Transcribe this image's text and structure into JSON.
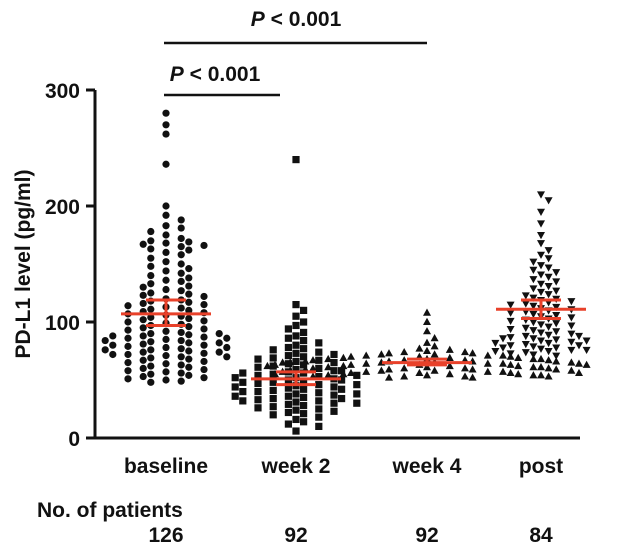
{
  "colors": {
    "points": "#111111",
    "median": "#e8412a",
    "axis": "#111111"
  },
  "chart_data": {
    "type": "scatter",
    "subtype": "dot-plot",
    "xlabel": "",
    "ylabel": "PD-L1 level (pg/ml)",
    "ylim": [
      0,
      300
    ],
    "yticks": [
      0,
      100,
      200,
      300
    ],
    "grid": false,
    "categories": [
      "baseline",
      "week 2",
      "week 4",
      "post"
    ],
    "markers": [
      "circle",
      "square",
      "triangle-up",
      "triangle-down"
    ],
    "summary_lines": [
      {
        "group": "baseline",
        "center": 107,
        "low": 97,
        "high": 119
      },
      {
        "group": "week 2",
        "center": 51,
        "low": 46,
        "high": 57
      },
      {
        "group": "week 4",
        "center": 65,
        "low": 63,
        "high": 68
      },
      {
        "group": "post",
        "center": 111,
        "low": 103,
        "high": 119
      }
    ],
    "series": [
      {
        "group": "baseline",
        "values": [
          280,
          270,
          262,
          236,
          200,
          192,
          188,
          183,
          181,
          178,
          175,
          172,
          170,
          169,
          168,
          167,
          166,
          165,
          163,
          162,
          160,
          158,
          155,
          152,
          150,
          148,
          146,
          144,
          142,
          140,
          138,
          136,
          135,
          133,
          131,
          130,
          128,
          127,
          125,
          124,
          123,
          122,
          120,
          119,
          118,
          117,
          116,
          115,
          114,
          113,
          112,
          111,
          110,
          109,
          108,
          107,
          106,
          105,
          104,
          103,
          102,
          101,
          100,
          99,
          98,
          97,
          96,
          95,
          94,
          93,
          92,
          91,
          90,
          90,
          89,
          88,
          88,
          87,
          86,
          86,
          85,
          84,
          84,
          83,
          82,
          82,
          81,
          80,
          80,
          79,
          78,
          78,
          77,
          76,
          76,
          75,
          74,
          74,
          73,
          72,
          72,
          71,
          70,
          70,
          69,
          68,
          67,
          66,
          65,
          64,
          63,
          62,
          61,
          60,
          59,
          58,
          57,
          56,
          55,
          54,
          53,
          52,
          51,
          50,
          49,
          48
        ]
      },
      {
        "group": "week 2",
        "values": [
          240,
          115,
          110,
          105,
          100,
          97,
          94,
          91,
          88,
          86,
          84,
          82,
          80,
          78,
          77,
          76,
          74,
          73,
          72,
          71,
          70,
          69,
          68,
          67,
          66,
          65,
          64,
          63,
          62,
          61,
          60,
          59,
          58,
          58,
          57,
          56,
          56,
          55,
          54,
          54,
          53,
          52,
          52,
          51,
          50,
          50,
          49,
          48,
          48,
          47,
          46,
          46,
          45,
          44,
          44,
          43,
          42,
          42,
          41,
          40,
          40,
          39,
          38,
          38,
          37,
          36,
          36,
          35,
          34,
          34,
          33,
          32,
          32,
          31,
          30,
          30,
          29,
          28,
          27,
          26,
          25,
          24,
          23,
          22,
          21,
          20,
          18,
          16,
          14,
          12,
          10,
          6
        ]
      },
      {
        "group": "week 4",
        "values": [
          108,
          100,
          92,
          86,
          82,
          79,
          77,
          76,
          75,
          74,
          74,
          73,
          73,
          72,
          72,
          71,
          71,
          71,
          70,
          70,
          70,
          69,
          69,
          69,
          68,
          68,
          68,
          68,
          67,
          67,
          67,
          67,
          66,
          66,
          66,
          66,
          65,
          65,
          65,
          65,
          65,
          64,
          64,
          64,
          64,
          63,
          63,
          63,
          63,
          63,
          62,
          62,
          62,
          62,
          61,
          61,
          61,
          61,
          60,
          60,
          60,
          60,
          59,
          59,
          59,
          59,
          58,
          58,
          58,
          58,
          57,
          57,
          57,
          57,
          56,
          56,
          56,
          56,
          55,
          55,
          55,
          55,
          54,
          54,
          54,
          54,
          53,
          53,
          53,
          53,
          52,
          52
        ]
      },
      {
        "group": "post",
        "values": [
          210,
          205,
          195,
          185,
          175,
          168,
          162,
          158,
          155,
          152,
          149,
          147,
          145,
          143,
          141,
          139,
          137,
          135,
          133,
          131,
          129,
          127,
          126,
          124,
          123,
          121,
          120,
          119,
          118,
          117,
          116,
          115,
          114,
          113,
          112,
          111,
          110,
          109,
          108,
          107,
          106,
          105,
          104,
          103,
          102,
          101,
          100,
          99,
          98,
          97,
          96,
          95,
          94,
          93,
          92,
          91,
          90,
          89,
          88,
          88,
          87,
          86,
          86,
          85,
          84,
          84,
          83,
          82,
          82,
          81,
          80,
          80,
          79,
          78,
          78,
          77,
          76,
          76,
          75,
          75,
          74,
          73,
          72,
          71
        ]
      }
    ],
    "annotations": [
      {
        "text": "P < 0.001",
        "from": "baseline",
        "to": "week 4",
        "level": 1
      },
      {
        "text": "P < 0.001",
        "from": "baseline",
        "to": "week 2",
        "level": 2
      }
    ],
    "patients": {
      "label": "No. of patients",
      "counts": [
        "126",
        "92",
        "92",
        "84"
      ]
    }
  }
}
